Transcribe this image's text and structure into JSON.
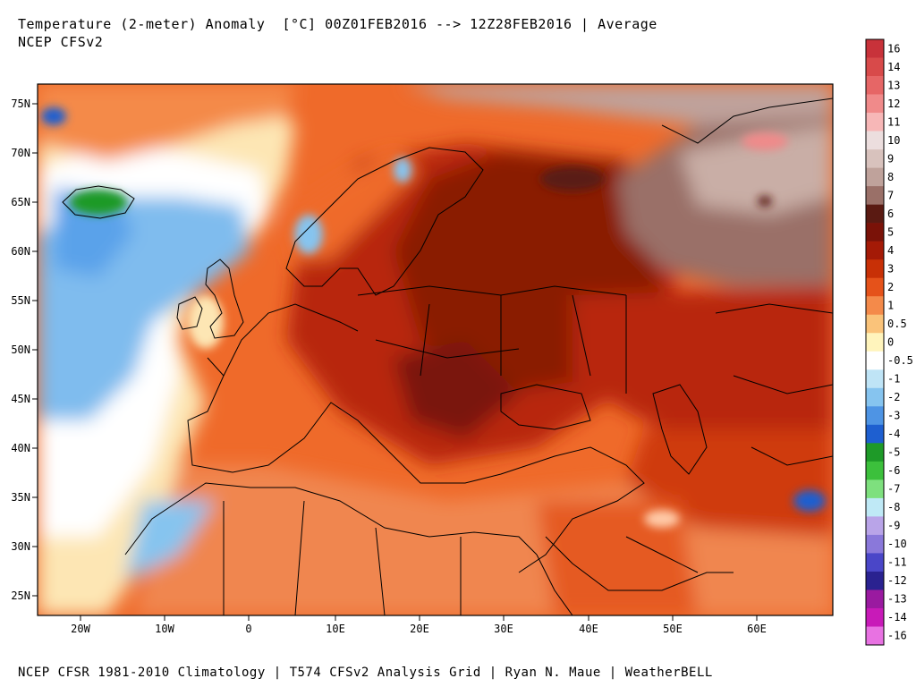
{
  "header": {
    "title": "Temperature (2-meter) Anomaly  [°C] 00Z01FEB2016 --> 12Z28FEB2016 | Average",
    "subtitle": "NCEP CFSv2"
  },
  "footer": {
    "text": "NCEP CFSR 1981-2010 Climatology | T574 CFSv2 Analysis Grid | Ryan N. Maue | WeatherBELL"
  },
  "map": {
    "lat_ticks": [
      "75N",
      "70N",
      "65N",
      "60N",
      "55N",
      "50N",
      "45N",
      "40N",
      "35N",
      "30N",
      "25N"
    ],
    "lon_ticks": [
      "20W",
      "10W",
      "0",
      "10E",
      "20E",
      "30E",
      "40E",
      "50E",
      "60E"
    ]
  },
  "colorbar": {
    "levels": [
      {
        "label": "16",
        "color": "#c8323a"
      },
      {
        "label": "14",
        "color": "#d84a4a"
      },
      {
        "label": "13",
        "color": "#e66666"
      },
      {
        "label": "12",
        "color": "#f08a8a"
      },
      {
        "label": "11",
        "color": "#f7b7b7"
      },
      {
        "label": "10",
        "color": "#ecdede"
      },
      {
        "label": "9",
        "color": "#d8c2bd"
      },
      {
        "label": "8",
        "color": "#bfa29b"
      },
      {
        "label": "7",
        "color": "#9a7068"
      },
      {
        "label": "6",
        "color": "#5a1a12"
      },
      {
        "label": "5",
        "color": "#7a1208"
      },
      {
        "label": "4",
        "color": "#a41a06"
      },
      {
        "label": "3",
        "color": "#c83006"
      },
      {
        "label": "2",
        "color": "#e5521a"
      },
      {
        "label": "1",
        "color": "#f48a4a"
      },
      {
        "label": "0.5",
        "color": "#fac37a"
      },
      {
        "label": "0",
        "color": "#fff4bc"
      },
      {
        "label": "-0.5",
        "color": "#ffffff"
      },
      {
        "label": "-1",
        "color": "#bfe4f6"
      },
      {
        "label": "-2",
        "color": "#86c4ef"
      },
      {
        "label": "-3",
        "color": "#4e94e4"
      },
      {
        "label": "-4",
        "color": "#1e5fd0"
      },
      {
        "label": "-5",
        "color": "#1e9a28"
      },
      {
        "label": "-6",
        "color": "#3cc03c"
      },
      {
        "label": "-7",
        "color": "#7ee07e"
      },
      {
        "label": "-8",
        "color": "#bfe9f6"
      },
      {
        "label": "-9",
        "color": "#b9a4e8"
      },
      {
        "label": "-10",
        "color": "#8a78da"
      },
      {
        "label": "-11",
        "color": "#4a46c8"
      },
      {
        "label": "-12",
        "color": "#2a2290"
      },
      {
        "label": "-13",
        "color": "#9a1aa0"
      },
      {
        "label": "-14",
        "color": "#c81ab8"
      },
      {
        "label": "-16",
        "color": "#e872e2"
      }
    ]
  }
}
